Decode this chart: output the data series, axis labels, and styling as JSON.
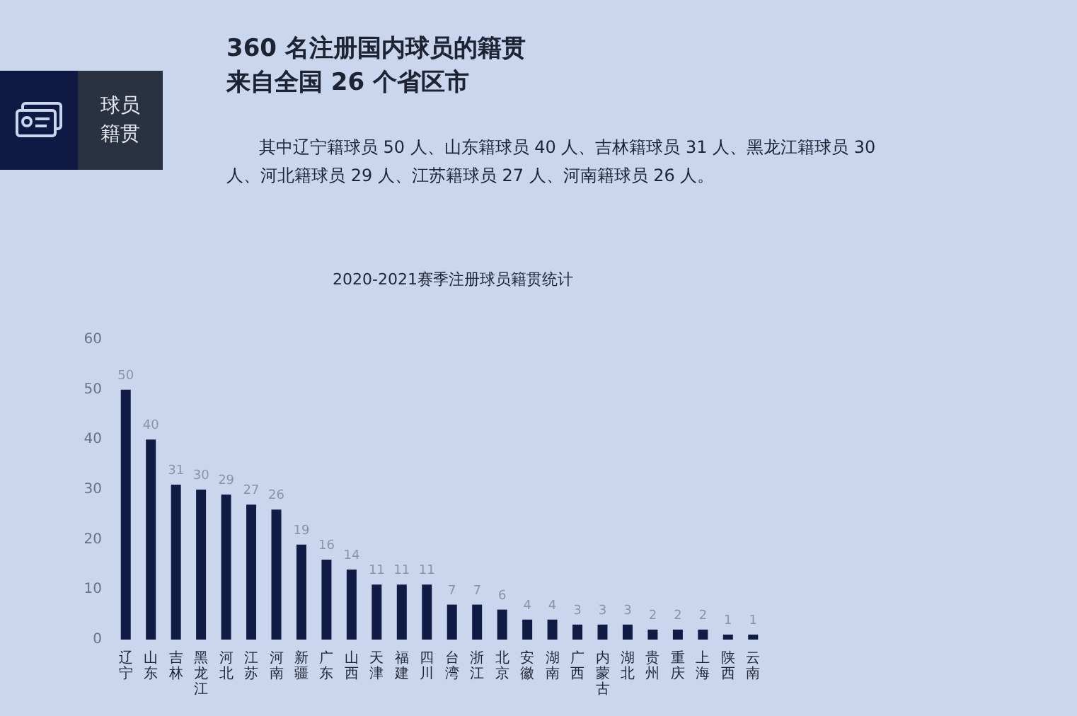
{
  "chart_data": {
    "type": "bar",
    "title": "2020-2021赛季注册球员籍贯统计",
    "annotations": [
      "360 名注册国内球员的籍贯",
      "来自全国 26 个省区市",
      "其中辽宁籍球员 50 人、山东籍球员 40 人、吉林籍球员 31 人、黑龙江籍球员 30 人、河北籍球员 29 人、江苏籍球员 27 人、河南籍球员 26 人。",
      "球员籍贯"
    ],
    "categories": [
      "辽宁",
      "山东",
      "吉林",
      "黑龙江",
      "河北",
      "江苏",
      "河南",
      "新疆",
      "广东",
      "山西",
      "天津",
      "福建",
      "四川",
      "台湾",
      "浙江",
      "北京",
      "安徽",
      "湖南",
      "广西",
      "内蒙古",
      "湖北",
      "贵州",
      "重庆",
      "上海",
      "陕西",
      "云南"
    ],
    "values": [
      50,
      40,
      31,
      30,
      29,
      27,
      26,
      19,
      16,
      14,
      11,
      11,
      11,
      7,
      7,
      6,
      4,
      4,
      3,
      3,
      3,
      2,
      2,
      2,
      1,
      1
    ],
    "color": "#101c44",
    "ylim": [
      0,
      60
    ],
    "yticks": [
      0,
      10,
      20,
      30,
      40,
      50,
      60
    ],
    "grid": false,
    "data_labels": true
  }
}
